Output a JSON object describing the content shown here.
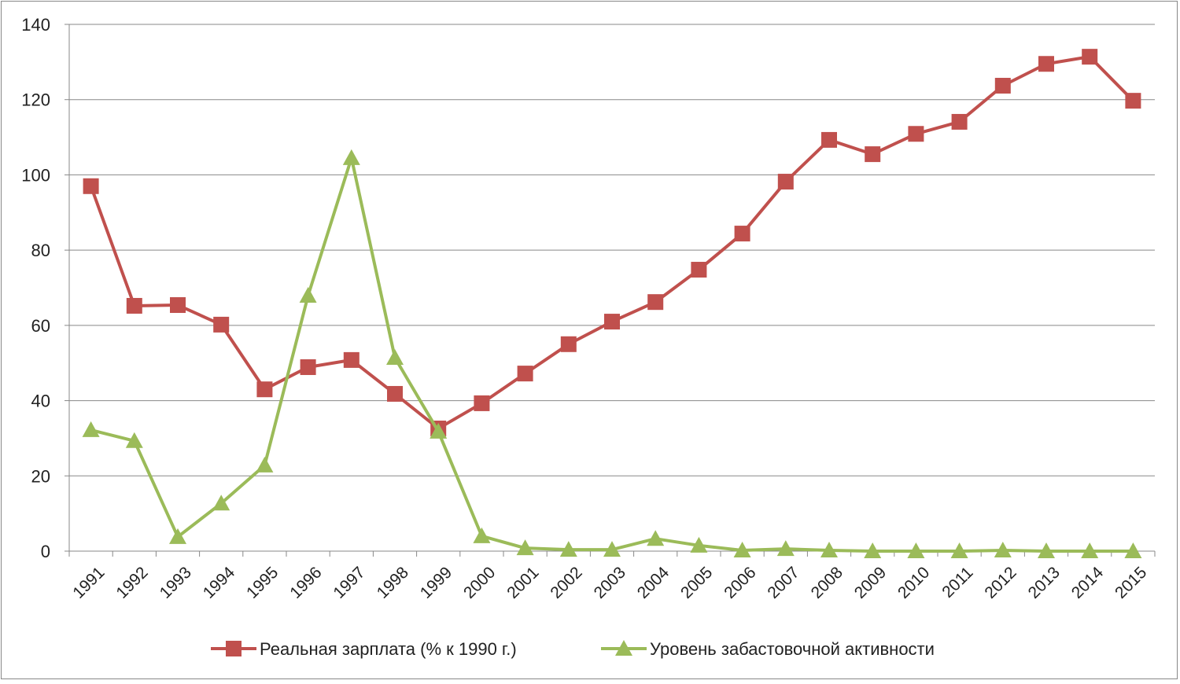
{
  "chart_data": {
    "type": "line",
    "title": "",
    "xlabel": "",
    "ylabel": "",
    "ylim": [
      0,
      140
    ],
    "yticks": [
      0,
      20,
      40,
      60,
      80,
      100,
      120,
      140
    ],
    "grid": true,
    "legend_position": "bottom",
    "categories": [
      "1991",
      "1992",
      "1993",
      "1994",
      "1995",
      "1996",
      "1997",
      "1998",
      "1999",
      "2000",
      "2001",
      "2002",
      "2003",
      "2004",
      "2005",
      "2006",
      "2007",
      "2008",
      "2009",
      "2010",
      "2011",
      "2012",
      "2013",
      "2014",
      "2015"
    ],
    "series": [
      {
        "name": "Реальная зарплата (% к 1990 г.)",
        "color": "#C0504D",
        "marker": "square",
        "values": [
          97,
          65.2,
          65.4,
          60.2,
          43,
          48.9,
          50.8,
          41.8,
          32.6,
          39.3,
          47.2,
          55,
          61,
          66.2,
          74.8,
          84.4,
          98.2,
          109.3,
          105.5,
          110.9,
          114.1,
          123.7,
          129.5,
          131.4,
          119.7
        ]
      },
      {
        "name": "Уровень забастовочной активности",
        "color": "#9BBB59",
        "marker": "triangle",
        "values": [
          32.2,
          29.3,
          3.8,
          12.7,
          22.8,
          67.9,
          104.5,
          51.4,
          31.8,
          4,
          0.8,
          0.4,
          0.4,
          3.3,
          1.5,
          0.2,
          0.6,
          0.2,
          0,
          0,
          0,
          0.2,
          0,
          0,
          0
        ]
      }
    ]
  }
}
